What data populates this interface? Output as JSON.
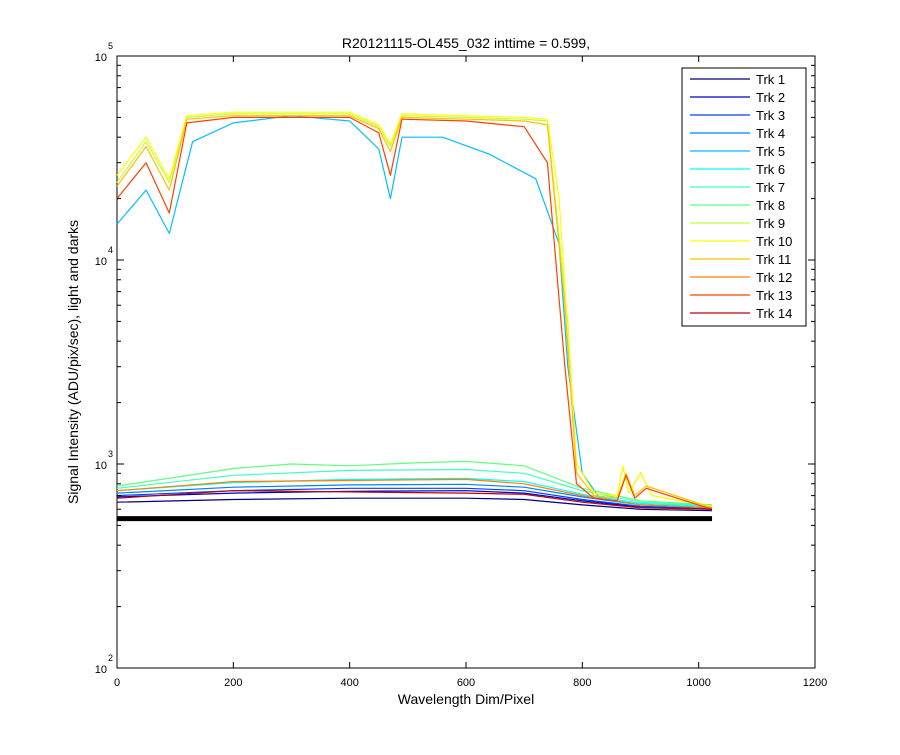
{
  "chart_data": {
    "type": "line",
    "title": "R20121115-OL455_032 inttime = 0.599,",
    "xlabel": "Wavelength Dim/Pixel",
    "ylabel": "Signal Intensity (ADU/pix/sec), light and darks",
    "xlim": [
      0,
      1200
    ],
    "ylim": [
      100,
      100000
    ],
    "yscale": "log",
    "grid": false,
    "legend_position": "top-right",
    "x_ticks": [
      0,
      200,
      400,
      600,
      800,
      1000,
      1200
    ],
    "x_tick_labels": [
      "0",
      "200",
      "400",
      "600",
      "800",
      "1000",
      "1200"
    ],
    "y_ticks": [
      100,
      1000,
      10000,
      100000
    ],
    "y_tick_labels": [
      {
        "base": "10",
        "exp": "2"
      },
      {
        "base": "10",
        "exp": "3"
      },
      {
        "base": "10",
        "exp": "4"
      },
      {
        "base": "10",
        "exp": "5"
      }
    ],
    "series": [
      {
        "name": "Trk 1",
        "color": "#00007f",
        "x": [
          0,
          200,
          400,
          600,
          700,
          800,
          900,
          1023
        ],
        "y": [
          650,
          670,
          680,
          680,
          670,
          630,
          600,
          590
        ]
      },
      {
        "name": "Trk 2",
        "color": "#0000c8",
        "x": [
          0,
          200,
          400,
          600,
          700,
          800,
          900,
          1023
        ],
        "y": [
          690,
          720,
          735,
          740,
          720,
          660,
          615,
          600
        ]
      },
      {
        "name": "Trk 3",
        "color": "#0040ff",
        "x": [
          0,
          200,
          400,
          600,
          700,
          800,
          900,
          1023
        ],
        "y": [
          700,
          740,
          760,
          760,
          740,
          670,
          620,
          605
        ]
      },
      {
        "name": "Trk 4",
        "color": "#0080ff",
        "x": [
          0,
          200,
          400,
          600,
          700,
          800,
          900,
          1023
        ],
        "y": [
          720,
          770,
          790,
          795,
          770,
          690,
          630,
          610
        ]
      },
      {
        "name": "Trk 5",
        "color": "#00c0ff",
        "x": [
          0,
          50,
          90,
          130,
          200,
          300,
          400,
          450,
          470,
          490,
          560,
          640,
          720,
          760,
          775,
          800,
          830,
          900,
          1023
        ],
        "y": [
          15000,
          22000,
          13500,
          38000,
          47000,
          51000,
          48000,
          35000,
          20000,
          40000,
          40000,
          33000,
          25000,
          12000,
          3000,
          900,
          680,
          630,
          610
        ]
      },
      {
        "name": "Trk 6",
        "color": "#00ffff",
        "x": [
          0,
          200,
          400,
          600,
          700,
          800,
          900,
          1023
        ],
        "y": [
          740,
          810,
          840,
          850,
          820,
          710,
          640,
          620
        ]
      },
      {
        "name": "Trk 7",
        "color": "#40ffbf",
        "x": [
          0,
          200,
          400,
          600,
          700,
          800,
          900,
          1023
        ],
        "y": [
          760,
          880,
          930,
          940,
          900,
          740,
          650,
          625
        ]
      },
      {
        "name": "Trk 8",
        "color": "#60ff80",
        "x": [
          0,
          100,
          200,
          300,
          400,
          500,
          600,
          700,
          800,
          900,
          1023
        ],
        "y": [
          780,
          860,
          950,
          1000,
          980,
          1010,
          1030,
          980,
          760,
          660,
          630
        ]
      },
      {
        "name": "Trk 9",
        "color": "#bfff40",
        "x": [
          0,
          50,
          90,
          120,
          200,
          400,
          450,
          470,
          490,
          600,
          700,
          740,
          775,
          790,
          820,
          860,
          870,
          880,
          900,
          920,
          1023
        ],
        "y": [
          24000,
          38000,
          24000,
          50000,
          52000,
          52000,
          45000,
          36000,
          51000,
          50000,
          49000,
          48000,
          5000,
          1000,
          720,
          700,
          960,
          720,
          900,
          700,
          620
        ]
      },
      {
        "name": "Trk 10",
        "color": "#ffff00",
        "x": [
          0,
          50,
          90,
          120,
          200,
          400,
          450,
          470,
          490,
          600,
          700,
          740,
          760,
          790,
          820,
          860,
          870,
          880,
          900,
          920,
          1023
        ],
        "y": [
          26000,
          40000,
          25000,
          51000,
          53000,
          53000,
          46000,
          37000,
          52000,
          51000,
          50000,
          49000,
          20000,
          1000,
          720,
          700,
          980,
          720,
          910,
          700,
          620
        ]
      },
      {
        "name": "Trk 11",
        "color": "#ffc000",
        "x": [
          0,
          50,
          90,
          120,
          200,
          400,
          450,
          470,
          490,
          600,
          700,
          740,
          770,
          790,
          820,
          860,
          875,
          890,
          910,
          1023
        ],
        "y": [
          23000,
          36000,
          22000,
          49000,
          51000,
          51000,
          44000,
          34000,
          50000,
          49000,
          48000,
          46000,
          6000,
          900,
          700,
          680,
          900,
          700,
          780,
          610
        ]
      },
      {
        "name": "Trk 12",
        "color": "#ff8000",
        "x": [
          0,
          200,
          400,
          600,
          700,
          800,
          900,
          1023
        ],
        "y": [
          740,
          820,
          830,
          840,
          800,
          700,
          630,
          610
        ]
      },
      {
        "name": "Trk 13",
        "color": "#ff4000",
        "x": [
          0,
          50,
          90,
          120,
          200,
          400,
          450,
          470,
          490,
          600,
          700,
          740,
          770,
          790,
          820,
          860,
          875,
          890,
          910,
          1023
        ],
        "y": [
          20000,
          30000,
          17000,
          47000,
          50000,
          50000,
          42000,
          26000,
          49000,
          48000,
          45000,
          30000,
          3000,
          800,
          680,
          660,
          880,
          680,
          760,
          600
        ]
      },
      {
        "name": "Trk 14",
        "color": "#c00000",
        "x": [
          0,
          200,
          400,
          600,
          700,
          800,
          900,
          1023
        ],
        "y": [
          680,
          740,
          730,
          720,
          710,
          650,
          610,
          600
        ]
      }
    ],
    "dark_series": {
      "color": "#000000",
      "x": [
        0,
        1023
      ],
      "y": [
        540,
        540
      ]
    }
  }
}
